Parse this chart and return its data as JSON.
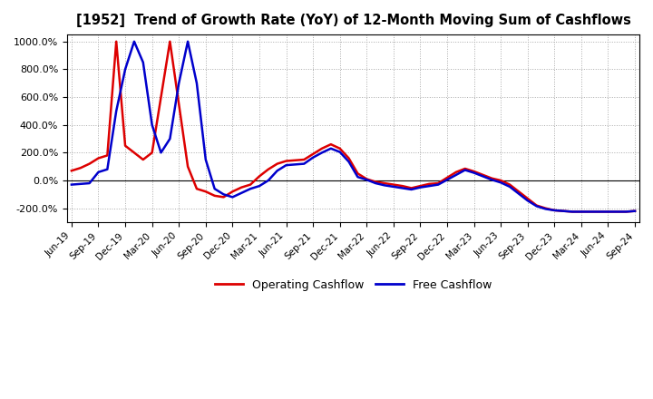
{
  "title": "[1952]  Trend of Growth Rate (YoY) of 12-Month Moving Sum of Cashflows",
  "ylim": [
    -300,
    1050
  ],
  "yticks": [
    -200,
    0,
    200,
    400,
    600,
    800,
    1000
  ],
  "background_color": "#ffffff",
  "plot_bg_color": "#ffffff",
  "grid_color": "#aaaaaa",
  "legend_labels": [
    "Operating Cashflow",
    "Free Cashflow"
  ],
  "op_color": "#dd0000",
  "free_color": "#0000cc",
  "x_tick_positions": [
    0,
    3,
    6,
    9,
    12,
    15,
    18,
    21,
    24,
    27,
    30,
    33,
    36,
    39,
    42,
    45,
    48,
    51,
    54,
    57,
    60,
    63
  ],
  "x_tick_labels": [
    "Jun-19",
    "Sep-19",
    "Dec-19",
    "Mar-20",
    "Jun-20",
    "Sep-20",
    "Dec-20",
    "Mar-21",
    "Jun-21",
    "Sep-21",
    "Dec-21",
    "Mar-22",
    "Jun-22",
    "Sep-22",
    "Dec-22",
    "Mar-23",
    "Jun-23",
    "Sep-23",
    "Dec-23",
    "Mar-24",
    "Jun-24",
    "Sep-24"
  ],
  "operating_cashflow": [
    70,
    90,
    120,
    160,
    180,
    1000,
    250,
    200,
    150,
    200,
    600,
    1000,
    550,
    100,
    -60,
    -80,
    -110,
    -120,
    -80,
    -50,
    -30,
    30,
    80,
    120,
    140,
    145,
    150,
    190,
    230,
    260,
    230,
    160,
    50,
    10,
    -10,
    -20,
    -30,
    -40,
    -55,
    -40,
    -25,
    -20,
    20,
    60,
    85,
    65,
    40,
    15,
    0,
    -30,
    -80,
    -130,
    -180,
    -200,
    -215,
    -220,
    -225,
    -225,
    -225,
    -225,
    -225,
    -225,
    -225,
    -220
  ],
  "free_cashflow": [
    -30,
    -25,
    -20,
    60,
    80,
    500,
    800,
    1000,
    850,
    400,
    200,
    300,
    700,
    1000,
    700,
    150,
    -60,
    -100,
    -120,
    -90,
    -60,
    -40,
    0,
    70,
    110,
    115,
    120,
    165,
    200,
    230,
    205,
    135,
    25,
    5,
    -20,
    -35,
    -45,
    -55,
    -65,
    -50,
    -40,
    -30,
    5,
    40,
    75,
    55,
    30,
    5,
    -15,
    -45,
    -95,
    -145,
    -185,
    -205,
    -215,
    -220,
    -225,
    -225,
    -225,
    -225,
    -225,
    -225,
    -225,
    -220
  ]
}
